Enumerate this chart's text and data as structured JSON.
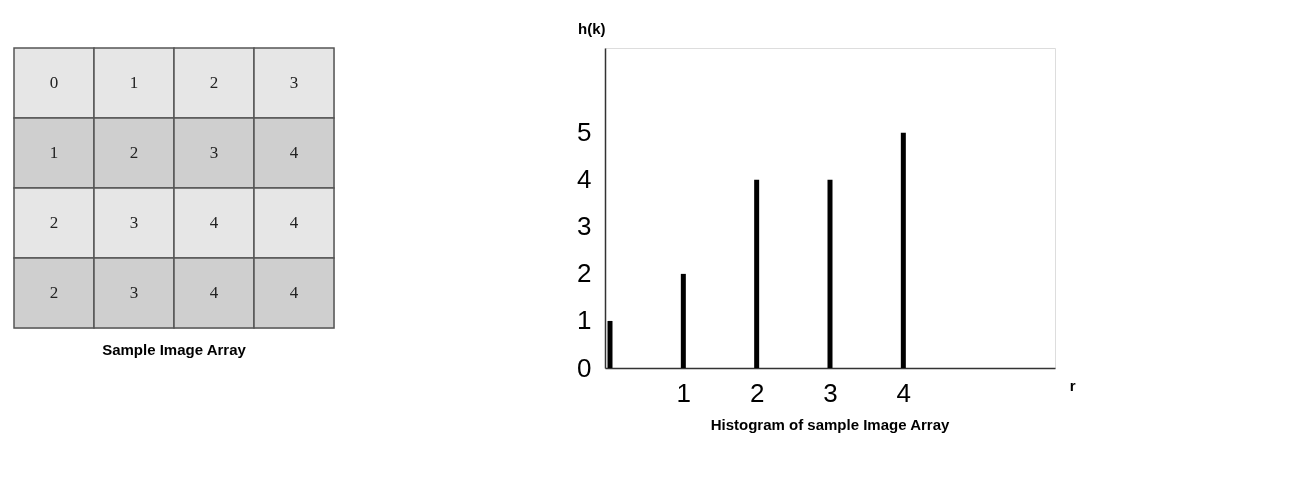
{
  "chart_data": [
    {
      "type": "heatmap",
      "title": "Sample Image Array",
      "categories": [
        null,
        null,
        null,
        null
      ],
      "y_categories": [
        null,
        null,
        null,
        null
      ],
      "cells": [
        [
          0,
          1,
          2,
          3
        ],
        [
          1,
          2,
          3,
          4
        ],
        [
          2,
          3,
          4,
          4
        ],
        [
          2,
          3,
          4,
          4
        ]
      ],
      "data_labels": true,
      "colors": [
        "#e6e6e6",
        "#cfcfcf",
        "#e6e6e6",
        "#cfcfcf"
      ],
      "tick_labels": false
    },
    {
      "type": "bar",
      "title": "Histogram of sample Image Array",
      "x": [
        0,
        1,
        2,
        3,
        4
      ],
      "values": [
        1,
        2,
        4,
        4,
        5
      ],
      "color": "#000000",
      "xlim": [
        0,
        6
      ],
      "xticks": [
        1,
        2,
        3,
        4
      ],
      "ylim": [
        0,
        6.8
      ],
      "yticks": [
        0,
        1,
        2,
        3,
        4,
        5
      ],
      "xlabel": "r",
      "ylabel": "h(k)",
      "grid": false
    }
  ]
}
